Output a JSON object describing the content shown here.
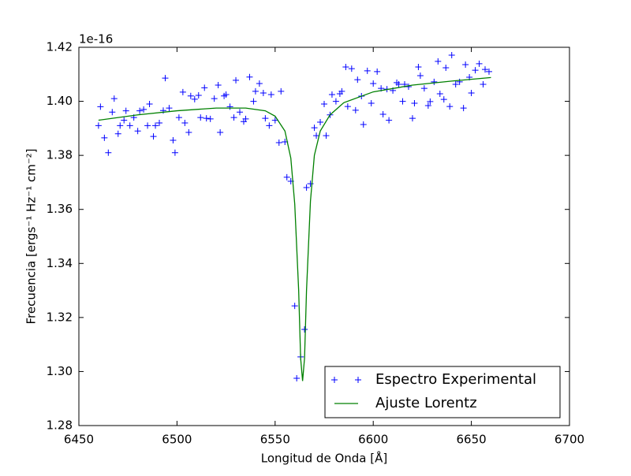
{
  "chart_data": {
    "type": "line",
    "xlabel": "Longitud de Onda [Å]",
    "ylabel": "Frecuencia [ergs⁻¹ Hz⁻¹ cm⁻²]",
    "y_offset_label": "1e-16",
    "xlim": [
      6450,
      6700
    ],
    "xticks": [
      6450,
      6500,
      6550,
      6600,
      6650,
      6700
    ],
    "ylim": [
      1.28,
      1.42
    ],
    "yticks": [
      1.28,
      {
        "value": 1.3,
        "label": "1.30"
      },
      1.32,
      1.34,
      1.36,
      1.38,
      {
        "value": 1.4,
        "label": "1.40"
      },
      1.42
    ],
    "grid": false,
    "legend": "lower right",
    "series": [
      {
        "name": "Espectro Experimental",
        "color": "#0000ff",
        "marker": "+",
        "linestyle": "none",
        "x": [
          6460,
          6461,
          6463,
          6465,
          6467,
          6468,
          6470,
          6471,
          6473,
          6474,
          6476,
          6478,
          6480,
          6481,
          6483,
          6485,
          6486,
          6488,
          6489,
          6491,
          6493,
          6494,
          6496,
          6498,
          6499,
          6501,
          6503,
          6504,
          6506,
          6507,
          6509,
          6511,
          6512,
          6514,
          6515,
          6517,
          6519,
          6521,
          6522,
          6524,
          6525,
          6527,
          6529,
          6530,
          6532,
          6534,
          6535,
          6537,
          6539,
          6540,
          6542,
          6544,
          6545,
          6547,
          6548,
          6550,
          6552,
          6553,
          6555,
          6556,
          6558,
          6560,
          6561,
          6563,
          6565,
          6566,
          6568,
          6570,
          6571,
          6573,
          6575,
          6576,
          6578,
          6579,
          6581,
          6583,
          6584,
          6586,
          6587,
          6589,
          6591,
          6592,
          6594,
          6595,
          6597,
          6599,
          6600,
          6602,
          6604,
          6605,
          6607,
          6608,
          6610,
          6612,
          6613,
          6615,
          6616,
          6618,
          6620,
          6621,
          6623,
          6624,
          6626,
          6628,
          6629,
          6631,
          6633,
          6634,
          6636,
          6637,
          6639,
          6640,
          6642,
          6644,
          6646,
          6647,
          6649,
          6650,
          6652,
          6654,
          6656,
          6657,
          6659
        ],
        "values": [
          1.391,
          1.398,
          1.3865,
          1.381,
          1.396,
          1.401,
          1.388,
          1.391,
          1.393,
          1.3965,
          1.391,
          1.394,
          1.389,
          1.3965,
          1.397,
          1.391,
          1.399,
          1.387,
          1.391,
          1.392,
          1.3966,
          1.4086,
          1.3975,
          1.3856,
          1.381,
          1.394,
          1.4034,
          1.392,
          1.3885,
          1.402,
          1.4008,
          1.4022,
          1.394,
          1.405,
          1.3937,
          1.3935,
          1.401,
          1.406,
          1.3885,
          1.402,
          1.4025,
          1.398,
          1.394,
          1.4078,
          1.396,
          1.3925,
          1.3935,
          1.409,
          1.4,
          1.4037,
          1.4066,
          1.4031,
          1.3937,
          1.391,
          1.4025,
          1.393,
          1.3847,
          1.4037,
          1.385,
          1.3719,
          1.3704,
          1.3243,
          1.2975,
          1.3054,
          1.3156,
          1.3681,
          1.3695,
          1.3902,
          1.3873,
          1.3923,
          1.399,
          1.3873,
          1.395,
          1.4025,
          1.4,
          1.4028,
          1.4037,
          1.4127,
          1.3981,
          1.4121,
          1.3967,
          1.408,
          1.4019,
          1.3914,
          1.4113,
          1.3993,
          1.4066,
          1.411,
          1.4048,
          1.3952,
          1.4045,
          1.393,
          1.404,
          1.4069,
          1.4063,
          1.4,
          1.4063,
          1.4054,
          1.3937,
          1.3993,
          1.4127,
          1.4095,
          1.4048,
          1.3984,
          1.3999,
          1.4072,
          1.4148,
          1.4028,
          1.4007,
          1.4124,
          1.3981,
          1.4171,
          1.4063,
          1.4072,
          1.3975,
          1.4136,
          1.4089,
          1.4031,
          1.4115,
          1.4139,
          1.4063,
          1.4118,
          1.411
        ]
      },
      {
        "name": "Ajuste Lorentz",
        "color": "#008000",
        "marker": null,
        "linestyle": "solid",
        "x": [
          6460,
          6480,
          6500,
          6520,
          6535,
          6545,
          6550,
          6555,
          6558,
          6560,
          6562,
          6563,
          6564,
          6565,
          6566,
          6568,
          6570,
          6573,
          6578,
          6585,
          6600,
          6620,
          6640,
          6660
        ],
        "values": [
          1.393,
          1.395,
          1.3965,
          1.3975,
          1.3975,
          1.3965,
          1.3945,
          1.389,
          1.379,
          1.362,
          1.33,
          1.305,
          1.2965,
          1.305,
          1.33,
          1.363,
          1.38,
          1.389,
          1.395,
          1.3995,
          1.4035,
          1.406,
          1.4075,
          1.4088
        ]
      }
    ]
  }
}
